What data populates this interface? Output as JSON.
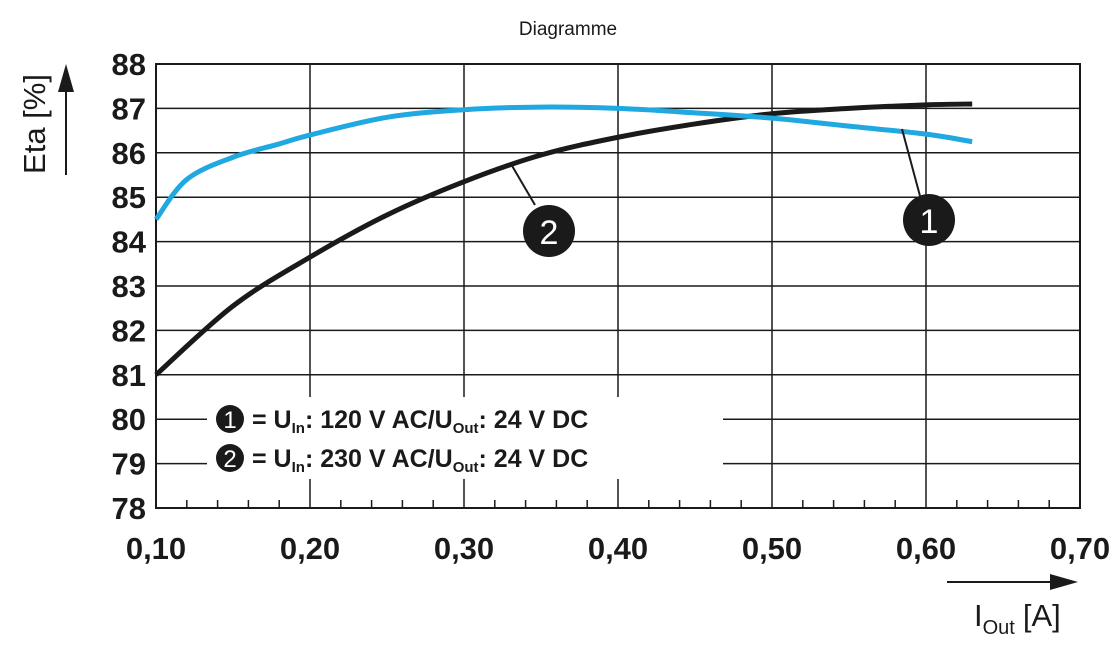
{
  "chart_data": {
    "type": "line",
    "title": "Diagramme",
    "xlabel": {
      "main": "I",
      "sub": "Out",
      "unit": "[A]"
    },
    "ylabel": "Eta [%]",
    "xlim": [
      0.1,
      0.7
    ],
    "ylim": [
      78,
      88
    ],
    "x_ticks": [
      "0,10",
      "0,20",
      "0,30",
      "0,40",
      "0,50",
      "0,60",
      "0,70"
    ],
    "x_tick_values": [
      0.1,
      0.2,
      0.3,
      0.4,
      0.5,
      0.6,
      0.7
    ],
    "y_ticks": [
      "78",
      "79",
      "80",
      "81",
      "82",
      "83",
      "84",
      "85",
      "86",
      "87",
      "88"
    ],
    "y_tick_values": [
      78,
      79,
      80,
      81,
      82,
      83,
      84,
      85,
      86,
      87,
      88
    ],
    "grid": true,
    "series": [
      {
        "id": "1",
        "color": "#20a8e0",
        "x": [
          0.1,
          0.12,
          0.15,
          0.18,
          0.2,
          0.25,
          0.3,
          0.35,
          0.4,
          0.45,
          0.5,
          0.55,
          0.6,
          0.63
        ],
        "y": [
          84.5,
          85.4,
          85.9,
          86.2,
          86.4,
          86.8,
          86.97,
          87.03,
          87.0,
          86.9,
          86.78,
          86.6,
          86.42,
          86.25
        ]
      },
      {
        "id": "2",
        "color": "#1a1a1a",
        "x": [
          0.1,
          0.15,
          0.2,
          0.25,
          0.3,
          0.35,
          0.4,
          0.45,
          0.5,
          0.55,
          0.6,
          0.63
        ],
        "y": [
          81.0,
          82.55,
          83.65,
          84.6,
          85.35,
          85.95,
          86.35,
          86.65,
          86.88,
          87.0,
          87.08,
          87.1
        ]
      }
    ],
    "callouts": [
      "1",
      "2"
    ],
    "legend": [
      {
        "marker": "1",
        "text": "= U",
        "sub1": "In",
        "mid": ": 120 V AC/U",
        "sub2": "Out",
        "tail": ": 24 V DC"
      },
      {
        "marker": "2",
        "text": "= U",
        "sub1": "In",
        "mid": ": 230 V AC/U",
        "sub2": "Out",
        "tail": ": 24 V DC"
      }
    ],
    "legend_placement": "bottom-left"
  },
  "colors": {
    "axis": "#1a1a1a",
    "grid": "#1a1a1a",
    "background": "#ffffff"
  }
}
